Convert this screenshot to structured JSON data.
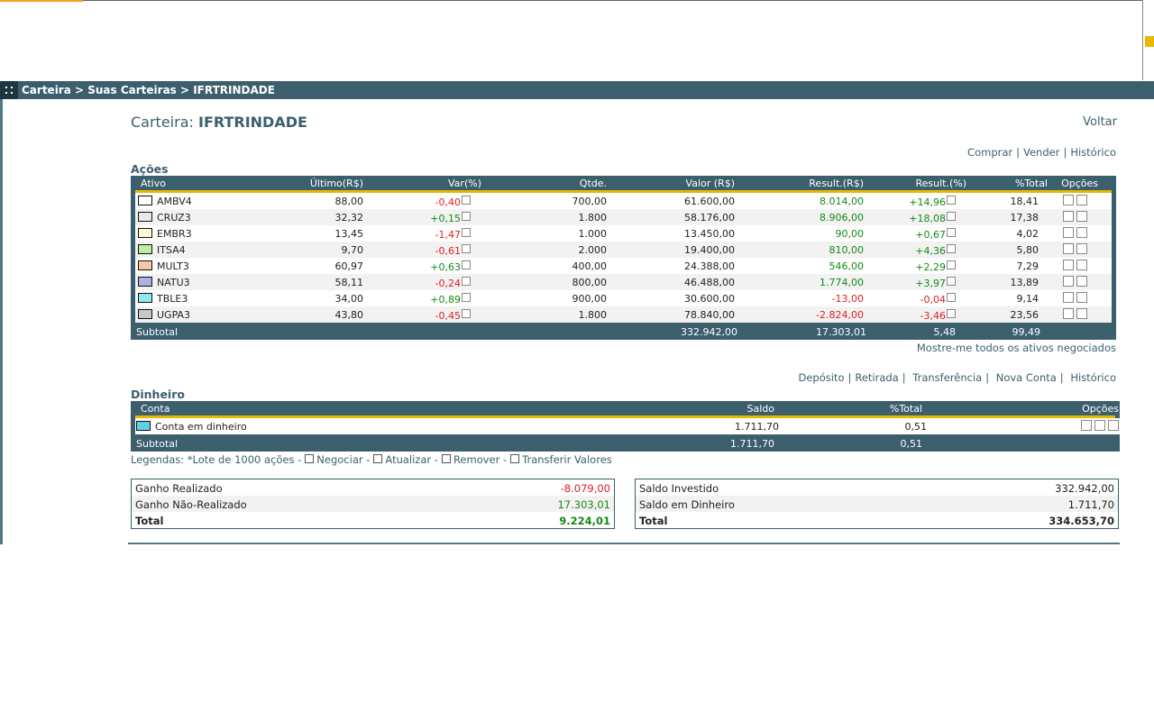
{
  "breadcrumb": "Carteira > Suas Carteiras > IFRTRINDADE",
  "title": {
    "prefix": "Carteira:",
    "name": "IFRTRINDADE"
  },
  "voltar": "Voltar",
  "acoes_actions": [
    "Comprar",
    "Vender",
    "Histórico"
  ],
  "acoes": {
    "section_title": "Ações",
    "headers": [
      "Ativo",
      "Último(R$)",
      "Var(%)",
      "Qtde.",
      "Valor (R$)",
      "Result.(R$)",
      "Result.(%)",
      "%Total",
      "Opções"
    ],
    "rows": [
      {
        "ativo": "AMBV4",
        "color": "#ffffff",
        "ultimo": "88,00",
        "var": "-0,40",
        "var_sign": "neg",
        "qtde": "700,00",
        "valor": "61.600,00",
        "result_rs": "8.014,00",
        "rrs_sign": "pos",
        "result_pct": "+14,96",
        "rpct_sign": "pos",
        "total": "18,41"
      },
      {
        "ativo": "CRUZ3",
        "color": "#e8e8f0",
        "ultimo": "32,32",
        "var": "+0,15",
        "var_sign": "pos",
        "qtde": "1.800",
        "valor": "58.176,00",
        "result_rs": "8.906,00",
        "rrs_sign": "pos",
        "result_pct": "+18,08",
        "rpct_sign": "pos",
        "total": "17,38"
      },
      {
        "ativo": "EMBR3",
        "color": "#fff8d0",
        "ultimo": "13,45",
        "var": "-1,47",
        "var_sign": "neg",
        "qtde": "1.000",
        "valor": "13.450,00",
        "result_rs": "90,00",
        "rrs_sign": "pos",
        "result_pct": "+0,67",
        "rpct_sign": "pos",
        "total": "4,02"
      },
      {
        "ativo": "ITSA4",
        "color": "#b8f0a0",
        "ultimo": "9,70",
        "var": "-0,61",
        "var_sign": "neg",
        "qtde": "2.000",
        "valor": "19.400,00",
        "result_rs": "810,00",
        "rrs_sign": "pos",
        "result_pct": "+4,36",
        "rpct_sign": "pos",
        "total": "5,80"
      },
      {
        "ativo": "MULT3",
        "color": "#f8c8a8",
        "ultimo": "60,97",
        "var": "+0,63",
        "var_sign": "pos",
        "qtde": "400,00",
        "valor": "24.388,00",
        "result_rs": "546,00",
        "rrs_sign": "pos",
        "result_pct": "+2,29",
        "rpct_sign": "pos",
        "total": "7,29"
      },
      {
        "ativo": "NATU3",
        "color": "#b0b0e8",
        "ultimo": "58,11",
        "var": "-0,24",
        "var_sign": "neg",
        "qtde": "800,00",
        "valor": "46.488,00",
        "result_rs": "1.774,00",
        "rrs_sign": "pos",
        "result_pct": "+3,97",
        "rpct_sign": "pos",
        "total": "13,89"
      },
      {
        "ativo": "TBLE3",
        "color": "#90e8f0",
        "ultimo": "34,00",
        "var": "+0,89",
        "var_sign": "pos",
        "qtde": "900,00",
        "valor": "30.600,00",
        "result_rs": "-13,00",
        "rrs_sign": "neg",
        "result_pct": "-0,04",
        "rpct_sign": "neg",
        "total": "9,14"
      },
      {
        "ativo": "UGPA3",
        "color": "#c8c8c8",
        "ultimo": "43,80",
        "var": "-0,45",
        "var_sign": "neg",
        "qtde": "1.800",
        "valor": "78.840,00",
        "result_rs": "-2.824,00",
        "rrs_sign": "neg",
        "result_pct": "-3,46",
        "rpct_sign": "neg",
        "total": "23,56"
      }
    ],
    "subtotal": {
      "label": "Subtotal",
      "valor": "332.942,00",
      "result_rs": "17.303,01",
      "result_pct": "5,48",
      "total": "99,49"
    }
  },
  "show_all_link": "Mostre-me todos os ativos negociados",
  "dinheiro_actions": [
    "Depósito",
    "Retirada",
    "Transferência",
    "Nova Conta",
    "Histórico"
  ],
  "dinheiro": {
    "section_title": "Dinheiro",
    "headers": [
      "Conta",
      "Saldo",
      "%Total",
      "Opções"
    ],
    "rows": [
      {
        "conta": "Conta em dinheiro",
        "color": "#60d0e0",
        "saldo": "1.711,70",
        "total": "0,51"
      }
    ],
    "subtotal": {
      "label": "Subtotal",
      "saldo": "1.711,70",
      "total": "0,51"
    }
  },
  "legend": {
    "prefix": "Legendas: *Lote de 1000 ações -",
    "items": [
      "Negociar -",
      "Atualizar -",
      "Remover -",
      "Transferir Valores"
    ]
  },
  "summary_left": [
    {
      "label": "Ganho Realizado",
      "value": "-8.079,00",
      "sign": "neg"
    },
    {
      "label": "Ganho Não-Realizado",
      "value": "17.303,01",
      "sign": "pos"
    },
    {
      "label": "Total",
      "value": "9.224,01",
      "sign": "pos",
      "bold": true
    }
  ],
  "summary_right": [
    {
      "label": "Saldo Investido",
      "value": "332.942,00",
      "sign": "none"
    },
    {
      "label": "Saldo em Dinheiro",
      "value": "1.711,70",
      "sign": "none"
    },
    {
      "label": "Total",
      "value": "334.653,70",
      "sign": "none",
      "bold": true
    }
  ]
}
